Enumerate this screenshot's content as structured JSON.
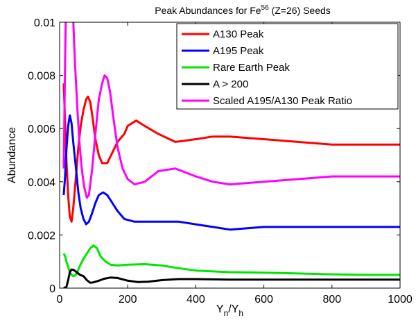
{
  "chart_data": {
    "type": "line",
    "title": {
      "prefix": "Peak Abundances for Fe",
      "superscript": "56",
      "suffix": " (Z=26) Seeds"
    },
    "xlabel": {
      "main": "Y",
      "sub1": "n",
      "slash": "/Y",
      "sub2": "h"
    },
    "ylabel": "Abundance",
    "xlim": [
      0,
      1000
    ],
    "ylim": [
      0,
      0.01
    ],
    "xticks": [
      0,
      200,
      400,
      600,
      800,
      1000
    ],
    "xtick_labels": [
      "0",
      "200",
      "400",
      "600",
      "800",
      "1000"
    ],
    "yticks": [
      0,
      0.002,
      0.004,
      0.006,
      0.008,
      0.01
    ],
    "ytick_labels": [
      "0",
      "0.002",
      "0.004",
      "0.006",
      "0.008",
      "0.01"
    ],
    "grid": false,
    "legend_position": "top-right",
    "series": [
      {
        "name": "A130 Peak",
        "color": "#ff0000",
        "points": [
          [
            12,
            0.0077
          ],
          [
            16,
            0.0062
          ],
          [
            20,
            0.0048
          ],
          [
            25,
            0.0035
          ],
          [
            30,
            0.0027
          ],
          [
            35,
            0.0025
          ],
          [
            40,
            0.003
          ],
          [
            48,
            0.0042
          ],
          [
            55,
            0.0053
          ],
          [
            62,
            0.0061
          ],
          [
            70,
            0.0067
          ],
          [
            78,
            0.0071
          ],
          [
            83,
            0.0072
          ],
          [
            90,
            0.007
          ],
          [
            97,
            0.0064
          ],
          [
            105,
            0.0056
          ],
          [
            115,
            0.005
          ],
          [
            125,
            0.0047
          ],
          [
            140,
            0.0047
          ],
          [
            155,
            0.0051
          ],
          [
            170,
            0.0055
          ],
          [
            190,
            0.0058
          ],
          [
            200,
            0.0061
          ],
          [
            225,
            0.0063
          ],
          [
            250,
            0.0061
          ],
          [
            290,
            0.0058
          ],
          [
            340,
            0.0055
          ],
          [
            400,
            0.0056
          ],
          [
            450,
            0.0057
          ],
          [
            500,
            0.0057
          ],
          [
            600,
            0.0056
          ],
          [
            700,
            0.0055
          ],
          [
            800,
            0.0054
          ],
          [
            870,
            0.0054
          ],
          [
            1000,
            0.0054
          ]
        ]
      },
      {
        "name": "A195 Peak",
        "color": "#0000ff",
        "points": [
          [
            12,
            0.0035
          ],
          [
            16,
            0.0042
          ],
          [
            20,
            0.0052
          ],
          [
            25,
            0.0061
          ],
          [
            30,
            0.0065
          ],
          [
            35,
            0.0062
          ],
          [
            40,
            0.0055
          ],
          [
            48,
            0.0045
          ],
          [
            55,
            0.0036
          ],
          [
            62,
            0.003
          ],
          [
            70,
            0.0026
          ],
          [
            78,
            0.0024
          ],
          [
            86,
            0.0025
          ],
          [
            95,
            0.0028
          ],
          [
            105,
            0.0032
          ],
          [
            115,
            0.0035
          ],
          [
            128,
            0.0036
          ],
          [
            140,
            0.0035
          ],
          [
            155,
            0.0032
          ],
          [
            170,
            0.0029
          ],
          [
            190,
            0.0026
          ],
          [
            220,
            0.0025
          ],
          [
            260,
            0.0025
          ],
          [
            300,
            0.0025
          ],
          [
            350,
            0.0025
          ],
          [
            400,
            0.0024
          ],
          [
            450,
            0.0023
          ],
          [
            500,
            0.0022
          ],
          [
            600,
            0.0023
          ],
          [
            700,
            0.0023
          ],
          [
            800,
            0.0023
          ],
          [
            1000,
            0.0023
          ]
        ]
      },
      {
        "name": "Rare Earth Peak",
        "color": "#00e600",
        "points": [
          [
            12,
            0.0013
          ],
          [
            16,
            0.0012
          ],
          [
            20,
            0.001
          ],
          [
            25,
            0.0008
          ],
          [
            30,
            0.0006
          ],
          [
            35,
            0.0005
          ],
          [
            40,
            0.00045
          ],
          [
            48,
            0.0005
          ],
          [
            55,
            0.0007
          ],
          [
            62,
            0.0009
          ],
          [
            70,
            0.0011
          ],
          [
            80,
            0.0013
          ],
          [
            90,
            0.0015
          ],
          [
            100,
            0.0016
          ],
          [
            110,
            0.0015
          ],
          [
            120,
            0.0012
          ],
          [
            135,
            0.001
          ],
          [
            150,
            0.00088
          ],
          [
            170,
            0.00085
          ],
          [
            200,
            0.00088
          ],
          [
            250,
            0.0009
          ],
          [
            300,
            0.00085
          ],
          [
            350,
            0.00075
          ],
          [
            400,
            0.00066
          ],
          [
            500,
            0.0006
          ],
          [
            600,
            0.00058
          ],
          [
            700,
            0.00055
          ],
          [
            800,
            0.00052
          ],
          [
            900,
            0.0005
          ],
          [
            1000,
            0.0005
          ]
        ]
      },
      {
        "name": "A > 200",
        "color": "#000000",
        "points": [
          [
            12,
            0.0
          ],
          [
            20,
            5e-05
          ],
          [
            25,
            0.0003
          ],
          [
            30,
            0.0006
          ],
          [
            35,
            0.0007
          ],
          [
            42,
            0.00068
          ],
          [
            50,
            0.0006
          ],
          [
            60,
            0.0005
          ],
          [
            70,
            0.00045
          ],
          [
            80,
            0.0003
          ],
          [
            90,
            0.0002
          ],
          [
            100,
            0.00022
          ],
          [
            115,
            0.00028
          ],
          [
            130,
            0.00035
          ],
          [
            150,
            0.0004
          ],
          [
            170,
            0.00038
          ],
          [
            200,
            0.00028
          ],
          [
            230,
            0.00023
          ],
          [
            260,
            0.00024
          ],
          [
            300,
            0.0003
          ],
          [
            350,
            0.00034
          ],
          [
            400,
            0.00034
          ],
          [
            450,
            0.00033
          ],
          [
            500,
            0.00032
          ],
          [
            600,
            0.00032
          ],
          [
            700,
            0.00032
          ],
          [
            800,
            0.00032
          ],
          [
            1000,
            0.00032
          ]
        ]
      },
      {
        "name": "Scaled A195/A130 Peak Ratio",
        "color": "#ff00ff",
        "points": [
          [
            12,
            0.0045
          ],
          [
            14,
            0.0065
          ],
          [
            16,
            0.0085
          ],
          [
            18,
            0.0101
          ],
          [
            20,
            0.0101
          ],
          [
            22,
            0.0101
          ],
          [
            28,
            0.0101
          ],
          [
            32,
            0.0101
          ],
          [
            36,
            0.0101
          ],
          [
            40,
            0.0101
          ],
          [
            45,
            0.0085
          ],
          [
            52,
            0.0068
          ],
          [
            58,
            0.0055
          ],
          [
            65,
            0.0045
          ],
          [
            72,
            0.0038
          ],
          [
            80,
            0.0034
          ],
          [
            86,
            0.0035
          ],
          [
            95,
            0.0044
          ],
          [
            105,
            0.0058
          ],
          [
            115,
            0.0071
          ],
          [
            125,
            0.0077
          ],
          [
            132,
            0.008
          ],
          [
            140,
            0.0079
          ],
          [
            148,
            0.0074
          ],
          [
            158,
            0.0064
          ],
          [
            170,
            0.0053
          ],
          [
            185,
            0.0045
          ],
          [
            200,
            0.0041
          ],
          [
            220,
            0.0039
          ],
          [
            250,
            0.004
          ],
          [
            290,
            0.0044
          ],
          [
            340,
            0.0045
          ],
          [
            400,
            0.0042
          ],
          [
            450,
            0.004
          ],
          [
            500,
            0.0039
          ],
          [
            600,
            0.004
          ],
          [
            700,
            0.0041
          ],
          [
            800,
            0.0042
          ],
          [
            870,
            0.0042
          ],
          [
            1000,
            0.0042
          ]
        ]
      }
    ]
  }
}
